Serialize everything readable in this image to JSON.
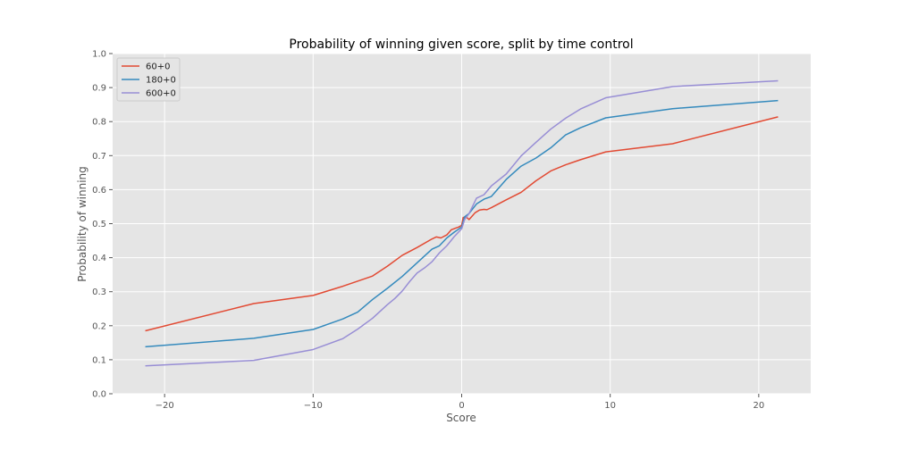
{
  "chart_data": {
    "type": "line",
    "title": "Probability of winning given score, split by time control",
    "xlabel": "Score",
    "ylabel": "Probability of winning",
    "xlim": [
      -23.5,
      23.5
    ],
    "ylim": [
      0.0,
      1.0
    ],
    "xticks": [
      -20,
      -10,
      0,
      10,
      20
    ],
    "xtick_labels": [
      "−20",
      "−10",
      "0",
      "10",
      "20"
    ],
    "yticks": [
      0.0,
      0.1,
      0.2,
      0.3,
      0.4,
      0.5,
      0.6,
      0.7,
      0.8,
      0.9,
      1.0
    ],
    "ytick_labels": [
      "0.0",
      "0.1",
      "0.2",
      "0.3",
      "0.4",
      "0.5",
      "0.6",
      "0.7",
      "0.8",
      "0.9",
      "1.0"
    ],
    "grid": true,
    "legend_position": "top-left",
    "background_color": "#e5e5e5",
    "grid_color": "#ffffff",
    "series": [
      {
        "name": "60+0",
        "color": "#e24a33",
        "x": [
          -21.3,
          -14.0,
          -10.0,
          -8.0,
          -6.0,
          -5.0,
          -4.0,
          -3.0,
          -2.0,
          -1.7,
          -1.4,
          -1.0,
          -0.7,
          -0.4,
          -0.2,
          0.0,
          0.1,
          0.3,
          0.5,
          0.7,
          0.9,
          1.2,
          1.5,
          1.7,
          2.0,
          3.0,
          4.0,
          5.0,
          6.0,
          7.0,
          8.0,
          9.7,
          14.2,
          21.3
        ],
        "y": [
          0.185,
          0.265,
          0.289,
          0.316,
          0.346,
          0.375,
          0.407,
          0.43,
          0.455,
          0.461,
          0.458,
          0.467,
          0.482,
          0.487,
          0.49,
          0.495,
          0.518,
          0.52,
          0.512,
          0.522,
          0.532,
          0.54,
          0.542,
          0.541,
          0.547,
          0.57,
          0.592,
          0.626,
          0.655,
          0.673,
          0.688,
          0.711,
          0.735,
          0.814
        ]
      },
      {
        "name": "180+0",
        "color": "#348abd",
        "x": [
          -21.3,
          -14.0,
          -10.0,
          -8.0,
          -7.0,
          -6.0,
          -5.0,
          -4.0,
          -3.0,
          -2.0,
          -1.5,
          -1.0,
          -0.5,
          0.0,
          0.2,
          0.5,
          1.0,
          1.5,
          2.0,
          3.0,
          4.0,
          5.0,
          6.0,
          7.0,
          8.0,
          9.7,
          14.2,
          21.3
        ],
        "y": [
          0.138,
          0.163,
          0.189,
          0.22,
          0.24,
          0.277,
          0.31,
          0.345,
          0.385,
          0.425,
          0.435,
          0.458,
          0.475,
          0.49,
          0.52,
          0.53,
          0.558,
          0.572,
          0.58,
          0.63,
          0.669,
          0.693,
          0.723,
          0.761,
          0.782,
          0.811,
          0.838,
          0.862
        ]
      },
      {
        "name": "600+0",
        "color": "#988ed5",
        "x": [
          -21.3,
          -14.0,
          -10.0,
          -8.0,
          -7.0,
          -6.0,
          -5.0,
          -4.5,
          -4.0,
          -3.5,
          -3.0,
          -2.5,
          -2.0,
          -1.5,
          -1.0,
          -0.5,
          0.0,
          0.2,
          0.5,
          1.0,
          1.5,
          2.0,
          3.0,
          4.0,
          5.0,
          6.0,
          7.0,
          8.0,
          9.7,
          14.2,
          21.3
        ],
        "y": [
          0.082,
          0.098,
          0.13,
          0.162,
          0.19,
          0.222,
          0.262,
          0.28,
          0.302,
          0.33,
          0.355,
          0.37,
          0.388,
          0.414,
          0.435,
          0.462,
          0.485,
          0.512,
          0.53,
          0.575,
          0.585,
          0.611,
          0.646,
          0.699,
          0.739,
          0.778,
          0.81,
          0.837,
          0.87,
          0.903,
          0.92
        ]
      }
    ]
  }
}
